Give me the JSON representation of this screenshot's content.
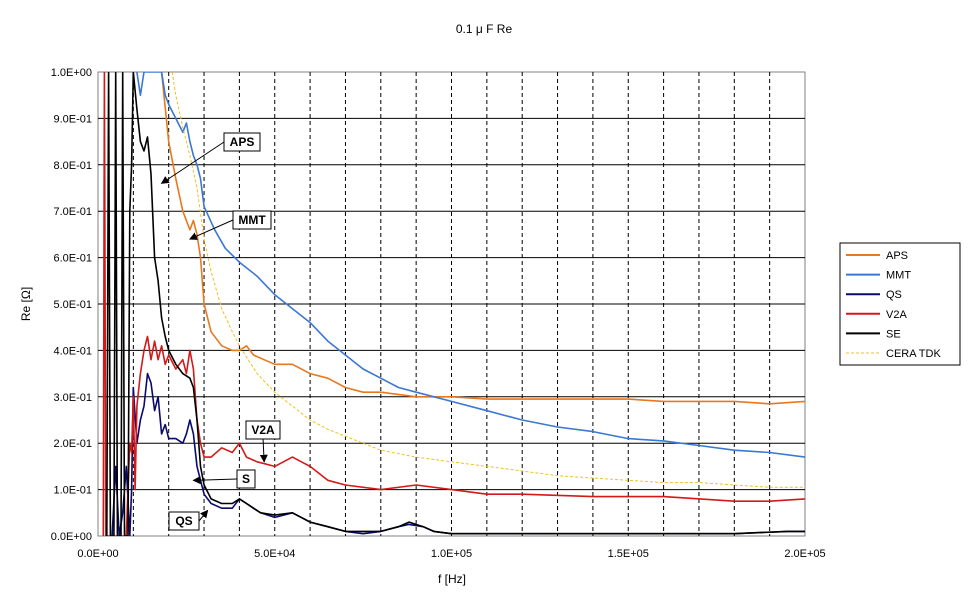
{
  "chart_data": {
    "type": "line",
    "title": "0.1 μ F Re",
    "xlabel": "f [Hz]",
    "ylabel": "Re [Ω]",
    "xlim": [
      0,
      200000
    ],
    "ylim": [
      0,
      1.0
    ],
    "x_ticks": [
      0,
      50000,
      100000,
      150000,
      200000
    ],
    "x_tick_labels": [
      "0.0E+00",
      "5.0E+04",
      "1.0E+05",
      "1.5E+05",
      "2.0E+05"
    ],
    "y_ticks": [
      0,
      0.1,
      0.2,
      0.3,
      0.4,
      0.5,
      0.6,
      0.7,
      0.8,
      0.9,
      1.0
    ],
    "y_tick_labels": [
      "0.0E+00",
      "1.0E-01",
      "2.0E-01",
      "3.0E-01",
      "4.0E-01",
      "5.0E-01",
      "6.0E-01",
      "7.0E-01",
      "8.0E-01",
      "9.0E-01",
      "1.0E+00"
    ],
    "grid": {
      "horizontal": "solid",
      "vertical": "dashed"
    },
    "legend_position": "right",
    "series": [
      {
        "name": "APS",
        "color": "#E8781E",
        "style": "solid",
        "points": [
          [
            18000,
            1.0
          ],
          [
            20000,
            0.85
          ],
          [
            22000,
            0.77
          ],
          [
            24000,
            0.7
          ],
          [
            26000,
            0.66
          ],
          [
            27000,
            0.68
          ],
          [
            28000,
            0.65
          ],
          [
            29000,
            0.6
          ],
          [
            30000,
            0.5
          ],
          [
            32000,
            0.44
          ],
          [
            35000,
            0.41
          ],
          [
            38000,
            0.4
          ],
          [
            40000,
            0.4
          ],
          [
            42000,
            0.41
          ],
          [
            44000,
            0.39
          ],
          [
            47000,
            0.38
          ],
          [
            50000,
            0.37
          ],
          [
            55000,
            0.37
          ],
          [
            60000,
            0.35
          ],
          [
            65000,
            0.34
          ],
          [
            70000,
            0.32
          ],
          [
            75000,
            0.31
          ],
          [
            80000,
            0.31
          ],
          [
            90000,
            0.3
          ],
          [
            100000,
            0.3
          ],
          [
            110000,
            0.295
          ],
          [
            120000,
            0.295
          ],
          [
            130000,
            0.295
          ],
          [
            140000,
            0.295
          ],
          [
            150000,
            0.295
          ],
          [
            160000,
            0.29
          ],
          [
            170000,
            0.29
          ],
          [
            180000,
            0.29
          ],
          [
            190000,
            0.285
          ],
          [
            200000,
            0.29
          ]
        ]
      },
      {
        "name": "MMT",
        "color": "#3A78D4",
        "style": "solid",
        "points": [
          [
            11000,
            1.0
          ],
          [
            12000,
            0.95
          ],
          [
            13000,
            1.0
          ],
          [
            18000,
            1.0
          ],
          [
            19000,
            0.95
          ],
          [
            20000,
            0.93
          ],
          [
            22000,
            0.9
          ],
          [
            24000,
            0.87
          ],
          [
            25000,
            0.89
          ],
          [
            26000,
            0.85
          ],
          [
            27000,
            0.82
          ],
          [
            28000,
            0.8
          ],
          [
            29000,
            0.77
          ],
          [
            30000,
            0.71
          ],
          [
            33000,
            0.66
          ],
          [
            36000,
            0.62
          ],
          [
            40000,
            0.59
          ],
          [
            45000,
            0.56
          ],
          [
            50000,
            0.52
          ],
          [
            55000,
            0.49
          ],
          [
            60000,
            0.46
          ],
          [
            65000,
            0.42
          ],
          [
            70000,
            0.39
          ],
          [
            75000,
            0.36
          ],
          [
            80000,
            0.34
          ],
          [
            85000,
            0.32
          ],
          [
            90000,
            0.31
          ],
          [
            100000,
            0.29
          ],
          [
            110000,
            0.27
          ],
          [
            120000,
            0.25
          ],
          [
            130000,
            0.235
          ],
          [
            140000,
            0.225
          ],
          [
            150000,
            0.21
          ],
          [
            160000,
            0.205
          ],
          [
            170000,
            0.195
          ],
          [
            180000,
            0.185
          ],
          [
            190000,
            0.18
          ],
          [
            200000,
            0.17
          ]
        ]
      },
      {
        "name": "QS",
        "color": "#0A0A6E",
        "style": "solid",
        "points": [
          [
            4000,
            0.0
          ],
          [
            5000,
            0.15
          ],
          [
            6000,
            0.0
          ],
          [
            7000,
            0.05
          ],
          [
            8000,
            0.15
          ],
          [
            9000,
            0.0
          ],
          [
            9500,
            0.1
          ],
          [
            10000,
            0.32
          ],
          [
            11000,
            0.2
          ],
          [
            12000,
            0.25
          ],
          [
            13000,
            0.28
          ],
          [
            14000,
            0.35
          ],
          [
            15000,
            0.33
          ],
          [
            16000,
            0.27
          ],
          [
            17000,
            0.3
          ],
          [
            18000,
            0.22
          ],
          [
            19000,
            0.24
          ],
          [
            20000,
            0.21
          ],
          [
            22000,
            0.21
          ],
          [
            24000,
            0.2
          ],
          [
            25000,
            0.22
          ],
          [
            26000,
            0.25
          ],
          [
            27000,
            0.22
          ],
          [
            28000,
            0.15
          ],
          [
            29000,
            0.12
          ],
          [
            30000,
            0.09
          ],
          [
            32000,
            0.07
          ],
          [
            35000,
            0.06
          ],
          [
            38000,
            0.06
          ],
          [
            40000,
            0.08
          ],
          [
            42000,
            0.07
          ],
          [
            44000,
            0.06
          ],
          [
            46000,
            0.05
          ],
          [
            50000,
            0.04
          ],
          [
            55000,
            0.05
          ],
          [
            60000,
            0.03
          ],
          [
            65000,
            0.02
          ],
          [
            70000,
            0.01
          ],
          [
            75000,
            0.005
          ],
          [
            80000,
            0.01
          ],
          [
            85000,
            0.02
          ],
          [
            88000,
            0.025
          ],
          [
            92000,
            0.02
          ],
          [
            95000,
            0.01
          ],
          [
            100000,
            0.005
          ],
          [
            120000,
            0.005
          ],
          [
            140000,
            0.005
          ],
          [
            160000,
            0.005
          ],
          [
            180000,
            0.005
          ],
          [
            195000,
            0.01
          ],
          [
            200000,
            0.01
          ]
        ]
      },
      {
        "name": "V2A",
        "color": "#D21A1A",
        "style": "solid",
        "points": [
          [
            1500,
            0.0
          ],
          [
            1800,
            1.0
          ],
          [
            2200,
            0.0
          ],
          [
            8000,
            0.0
          ],
          [
            8500,
            0.1
          ],
          [
            9000,
            0.2
          ],
          [
            9500,
            0.18
          ],
          [
            10000,
            0.3
          ],
          [
            10500,
            0.1
          ],
          [
            11000,
            0.28
          ],
          [
            12000,
            0.35
          ],
          [
            13000,
            0.4
          ],
          [
            14000,
            0.43
          ],
          [
            15000,
            0.38
          ],
          [
            16000,
            0.42
          ],
          [
            17000,
            0.38
          ],
          [
            18000,
            0.41
          ],
          [
            19000,
            0.37
          ],
          [
            20000,
            0.39
          ],
          [
            22000,
            0.36
          ],
          [
            24000,
            0.38
          ],
          [
            25000,
            0.35
          ],
          [
            26000,
            0.4
          ],
          [
            27000,
            0.36
          ],
          [
            28000,
            0.25
          ],
          [
            29000,
            0.2
          ],
          [
            30000,
            0.17
          ],
          [
            32000,
            0.17
          ],
          [
            35000,
            0.19
          ],
          [
            38000,
            0.18
          ],
          [
            40000,
            0.2
          ],
          [
            42000,
            0.17
          ],
          [
            45000,
            0.16
          ],
          [
            50000,
            0.15
          ],
          [
            55000,
            0.17
          ],
          [
            60000,
            0.15
          ],
          [
            65000,
            0.12
          ],
          [
            70000,
            0.11
          ],
          [
            80000,
            0.1
          ],
          [
            90000,
            0.11
          ],
          [
            100000,
            0.1
          ],
          [
            110000,
            0.09
          ],
          [
            120000,
            0.09
          ],
          [
            140000,
            0.085
          ],
          [
            160000,
            0.085
          ],
          [
            180000,
            0.075
          ],
          [
            190000,
            0.075
          ],
          [
            200000,
            0.08
          ]
        ]
      },
      {
        "name": "SE",
        "color": "#000000",
        "style": "solid",
        "points": [
          [
            2500,
            0.0
          ],
          [
            3000,
            1.0
          ],
          [
            3500,
            0.0
          ],
          [
            4500,
            0.0
          ],
          [
            5000,
            1.0
          ],
          [
            5500,
            0.0
          ],
          [
            6500,
            0.0
          ],
          [
            7000,
            1.0
          ],
          [
            7500,
            0.0
          ],
          [
            8500,
            0.0
          ],
          [
            9000,
            0.7
          ],
          [
            9500,
            0.8
          ],
          [
            10000,
            1.0
          ],
          [
            11000,
            0.92
          ],
          [
            12000,
            0.85
          ],
          [
            13000,
            0.83
          ],
          [
            14000,
            0.86
          ],
          [
            15000,
            0.78
          ],
          [
            16000,
            0.6
          ],
          [
            17000,
            0.55
          ],
          [
            18000,
            0.47
          ],
          [
            19000,
            0.43
          ],
          [
            20000,
            0.4
          ],
          [
            22000,
            0.37
          ],
          [
            24000,
            0.35
          ],
          [
            26000,
            0.34
          ],
          [
            27000,
            0.32
          ],
          [
            28000,
            0.25
          ],
          [
            29000,
            0.15
          ],
          [
            30000,
            0.11
          ],
          [
            32000,
            0.08
          ],
          [
            35000,
            0.07
          ],
          [
            38000,
            0.07
          ],
          [
            40000,
            0.08
          ],
          [
            42000,
            0.07
          ],
          [
            44000,
            0.06
          ],
          [
            46000,
            0.05
          ],
          [
            50000,
            0.045
          ],
          [
            55000,
            0.05
          ],
          [
            60000,
            0.03
          ],
          [
            65000,
            0.02
          ],
          [
            70000,
            0.01
          ],
          [
            80000,
            0.01
          ],
          [
            85000,
            0.02
          ],
          [
            88000,
            0.03
          ],
          [
            92000,
            0.02
          ],
          [
            95000,
            0.01
          ],
          [
            100000,
            0.005
          ],
          [
            120000,
            0.005
          ],
          [
            150000,
            0.005
          ],
          [
            180000,
            0.005
          ],
          [
            195000,
            0.01
          ],
          [
            200000,
            0.01
          ]
        ]
      },
      {
        "name": "CERA TDK",
        "color": "#F0C020",
        "style": "dashed",
        "points": [
          [
            21000,
            1.0
          ],
          [
            22000,
            0.95
          ],
          [
            24000,
            0.88
          ],
          [
            26000,
            0.82
          ],
          [
            28000,
            0.75
          ],
          [
            30000,
            0.64
          ],
          [
            32000,
            0.57
          ],
          [
            35000,
            0.49
          ],
          [
            38000,
            0.44
          ],
          [
            40000,
            0.41
          ],
          [
            45000,
            0.35
          ],
          [
            50000,
            0.31
          ],
          [
            55000,
            0.28
          ],
          [
            60000,
            0.25
          ],
          [
            65000,
            0.23
          ],
          [
            70000,
            0.215
          ],
          [
            75000,
            0.2
          ],
          [
            80000,
            0.185
          ],
          [
            90000,
            0.17
          ],
          [
            100000,
            0.16
          ],
          [
            110000,
            0.15
          ],
          [
            120000,
            0.14
          ],
          [
            130000,
            0.13
          ],
          [
            140000,
            0.125
          ],
          [
            150000,
            0.12
          ],
          [
            160000,
            0.115
          ],
          [
            170000,
            0.115
          ],
          [
            180000,
            0.11
          ],
          [
            190000,
            0.105
          ],
          [
            200000,
            0.105
          ]
        ]
      }
    ],
    "annotations": [
      {
        "label": "APS",
        "anchor": [
          18000,
          0.76
        ]
      },
      {
        "label": "MMT",
        "anchor": [
          26000,
          0.64
        ]
      },
      {
        "label": "V2A",
        "anchor": [
          47000,
          0.16
        ]
      },
      {
        "label": "S",
        "anchor": [
          27000,
          0.12
        ]
      },
      {
        "label": "QS",
        "anchor": [
          31000,
          0.055
        ]
      }
    ]
  }
}
